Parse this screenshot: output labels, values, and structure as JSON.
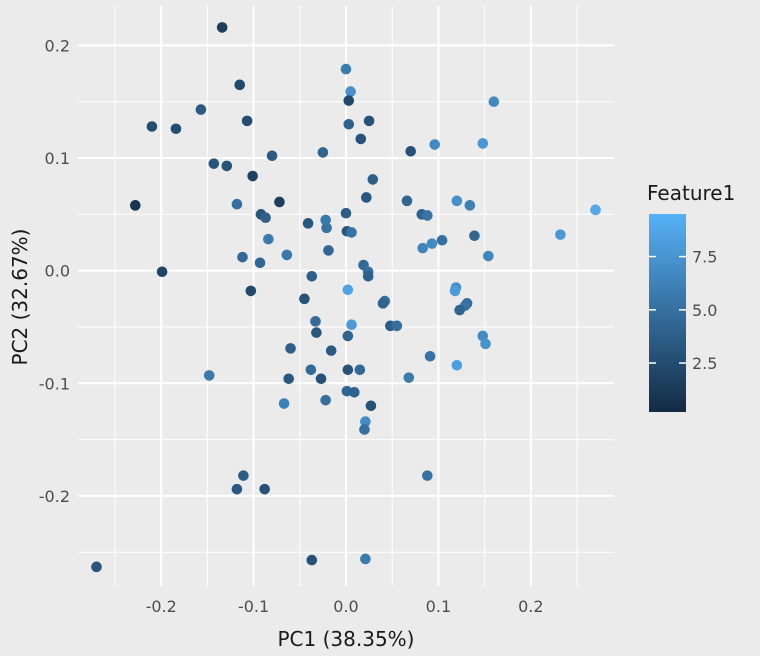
{
  "chart_data": {
    "type": "scatter",
    "title": "",
    "xlabel": "PC1 (38.35%)",
    "ylabel": "PC2 (32.67%)",
    "xlim": [
      -0.29,
      0.29
    ],
    "ylim": [
      -0.28,
      0.235
    ],
    "x_ticks": [
      -0.2,
      -0.1,
      0.0,
      0.1,
      0.2
    ],
    "x_tick_labels": [
      "-0.2",
      "-0.1",
      "0.0",
      "0.1",
      "0.2"
    ],
    "y_ticks": [
      -0.2,
      -0.1,
      0.0,
      0.1,
      0.2
    ],
    "y_tick_labels": [
      "-0.2",
      "-0.1",
      "0.0",
      "0.1",
      "0.2"
    ],
    "grid": true,
    "background": "#ebebeb",
    "grid_color": "#ffffff",
    "legend": {
      "title": "Feature1",
      "placement": "right",
      "type": "colorbar",
      "range": [
        0.2,
        9.5
      ],
      "ticks": [
        2.5,
        5.0,
        7.5
      ],
      "tick_labels": [
        "2.5",
        "5.0",
        "7.5"
      ],
      "low_color": "#132b43",
      "high_color": "#56b1f7"
    },
    "points": [
      {
        "x": -0.134,
        "y": 0.216,
        "v": 1.5
      },
      {
        "x": -0.115,
        "y": 0.165,
        "v": 2.3
      },
      {
        "x": -0.157,
        "y": 0.143,
        "v": 3.5
      },
      {
        "x": -0.21,
        "y": 0.128,
        "v": 2.6
      },
      {
        "x": -0.184,
        "y": 0.126,
        "v": 2.6
      },
      {
        "x": -0.107,
        "y": 0.133,
        "v": 2.6
      },
      {
        "x": -0.143,
        "y": 0.095,
        "v": 3.2
      },
      {
        "x": -0.129,
        "y": 0.093,
        "v": 3.0
      },
      {
        "x": -0.101,
        "y": 0.084,
        "v": 1.8
      },
      {
        "x": -0.08,
        "y": 0.102,
        "v": 3.5
      },
      {
        "x": -0.228,
        "y": 0.058,
        "v": 0.9
      },
      {
        "x": -0.118,
        "y": 0.059,
        "v": 5.0
      },
      {
        "x": -0.072,
        "y": 0.061,
        "v": 1.6
      },
      {
        "x": -0.092,
        "y": 0.05,
        "v": 3.2
      },
      {
        "x": -0.087,
        "y": 0.047,
        "v": 3.9
      },
      {
        "x": -0.084,
        "y": 0.028,
        "v": 5.6
      },
      {
        "x": -0.064,
        "y": 0.014,
        "v": 5.6
      },
      {
        "x": -0.112,
        "y": 0.012,
        "v": 4.5
      },
      {
        "x": -0.093,
        "y": 0.007,
        "v": 4.3
      },
      {
        "x": -0.199,
        "y": -0.001,
        "v": 2.0
      },
      {
        "x": -0.103,
        "y": -0.018,
        "v": 2.3
      },
      {
        "x": -0.045,
        "y": -0.025,
        "v": 3.0
      },
      {
        "x": -0.037,
        "y": -0.005,
        "v": 3.8
      },
      {
        "x": -0.041,
        "y": 0.042,
        "v": 3.3
      },
      {
        "x": -0.022,
        "y": 0.045,
        "v": 5.6
      },
      {
        "x": -0.021,
        "y": 0.038,
        "v": 5.2
      },
      {
        "x": -0.019,
        "y": 0.018,
        "v": 4.3
      },
      {
        "x": -0.025,
        "y": 0.105,
        "v": 4.3
      },
      {
        "x": 0.0,
        "y": 0.051,
        "v": 3.7
      },
      {
        "x": 0.001,
        "y": 0.035,
        "v": 3.2
      },
      {
        "x": 0.006,
        "y": 0.034,
        "v": 5.2
      },
      {
        "x": 0.022,
        "y": 0.065,
        "v": 3.3
      },
      {
        "x": 0.029,
        "y": 0.081,
        "v": 3.8
      },
      {
        "x": 0.016,
        "y": 0.117,
        "v": 3.0
      },
      {
        "x": 0.025,
        "y": 0.133,
        "v": 3.0
      },
      {
        "x": 0.003,
        "y": 0.13,
        "v": 4.0
      },
      {
        "x": 0.0,
        "y": 0.179,
        "v": 5.8
      },
      {
        "x": 0.005,
        "y": 0.159,
        "v": 7.3
      },
      {
        "x": 0.003,
        "y": 0.151,
        "v": 2.3
      },
      {
        "x": 0.019,
        "y": 0.005,
        "v": 4.5
      },
      {
        "x": 0.024,
        "y": -0.001,
        "v": 5.0
      },
      {
        "x": 0.024,
        "y": -0.005,
        "v": 3.9
      },
      {
        "x": 0.002,
        "y": -0.017,
        "v": 8.5
      },
      {
        "x": -0.033,
        "y": -0.045,
        "v": 4.6
      },
      {
        "x": -0.032,
        "y": -0.055,
        "v": 3.2
      },
      {
        "x": 0.006,
        "y": -0.048,
        "v": 8.0
      },
      {
        "x": 0.002,
        "y": -0.058,
        "v": 4.2
      },
      {
        "x": -0.016,
        "y": -0.071,
        "v": 3.5
      },
      {
        "x": -0.06,
        "y": -0.069,
        "v": 3.8
      },
      {
        "x": -0.038,
        "y": -0.088,
        "v": 4.6
      },
      {
        "x": -0.027,
        "y": -0.096,
        "v": 2.8
      },
      {
        "x": -0.062,
        "y": -0.096,
        "v": 3.3
      },
      {
        "x": 0.002,
        "y": -0.088,
        "v": 3.0
      },
      {
        "x": 0.015,
        "y": -0.088,
        "v": 4.5
      },
      {
        "x": 0.001,
        "y": -0.107,
        "v": 4.3
      },
      {
        "x": 0.009,
        "y": -0.108,
        "v": 4.0
      },
      {
        "x": -0.067,
        "y": -0.118,
        "v": 6.2
      },
      {
        "x": -0.022,
        "y": -0.115,
        "v": 4.9
      },
      {
        "x": 0.027,
        "y": -0.12,
        "v": 2.9
      },
      {
        "x": 0.021,
        "y": -0.134,
        "v": 6.9
      },
      {
        "x": 0.02,
        "y": -0.141,
        "v": 5.0
      },
      {
        "x": 0.042,
        "y": -0.027,
        "v": 5.0
      },
      {
        "x": 0.04,
        "y": -0.029,
        "v": 4.2
      },
      {
        "x": 0.048,
        "y": -0.049,
        "v": 3.7
      },
      {
        "x": 0.055,
        "y": -0.049,
        "v": 4.9
      },
      {
        "x": 0.068,
        "y": -0.095,
        "v": 5.8
      },
      {
        "x": 0.091,
        "y": -0.076,
        "v": 5.2
      },
      {
        "x": 0.12,
        "y": -0.084,
        "v": 8.2
      },
      {
        "x": 0.088,
        "y": -0.182,
        "v": 5.0
      },
      {
        "x": 0.066,
        "y": 0.062,
        "v": 4.3
      },
      {
        "x": 0.07,
        "y": 0.106,
        "v": 2.9
      },
      {
        "x": 0.082,
        "y": 0.05,
        "v": 4.1
      },
      {
        "x": 0.088,
        "y": 0.049,
        "v": 5.2
      },
      {
        "x": 0.083,
        "y": 0.02,
        "v": 6.5
      },
      {
        "x": 0.093,
        "y": 0.024,
        "v": 6.8
      },
      {
        "x": 0.104,
        "y": 0.027,
        "v": 5.0
      },
      {
        "x": 0.096,
        "y": 0.112,
        "v": 6.8
      },
      {
        "x": 0.12,
        "y": 0.062,
        "v": 7.3
      },
      {
        "x": 0.134,
        "y": 0.058,
        "v": 6.2
      },
      {
        "x": 0.139,
        "y": 0.031,
        "v": 4.2
      },
      {
        "x": 0.148,
        "y": 0.113,
        "v": 7.6
      },
      {
        "x": 0.16,
        "y": 0.15,
        "v": 6.8
      },
      {
        "x": 0.154,
        "y": 0.013,
        "v": 6.6
      },
      {
        "x": 0.119,
        "y": -0.015,
        "v": 7.2
      },
      {
        "x": 0.118,
        "y": -0.018,
        "v": 8.0
      },
      {
        "x": 0.131,
        "y": -0.029,
        "v": 4.7
      },
      {
        "x": 0.129,
        "y": -0.031,
        "v": 5.2
      },
      {
        "x": 0.123,
        "y": -0.035,
        "v": 4.2
      },
      {
        "x": 0.148,
        "y": -0.058,
        "v": 6.9
      },
      {
        "x": 0.151,
        "y": -0.065,
        "v": 7.4
      },
      {
        "x": 0.232,
        "y": 0.032,
        "v": 7.8
      },
      {
        "x": 0.27,
        "y": 0.054,
        "v": 8.8
      },
      {
        "x": -0.148,
        "y": -0.093,
        "v": 5.7
      },
      {
        "x": -0.111,
        "y": -0.182,
        "v": 3.6
      },
      {
        "x": -0.118,
        "y": -0.194,
        "v": 3.4
      },
      {
        "x": -0.088,
        "y": -0.194,
        "v": 2.8
      },
      {
        "x": -0.037,
        "y": -0.257,
        "v": 2.9
      },
      {
        "x": 0.021,
        "y": -0.256,
        "v": 5.8
      },
      {
        "x": -0.27,
        "y": -0.263,
        "v": 3.1
      }
    ]
  }
}
